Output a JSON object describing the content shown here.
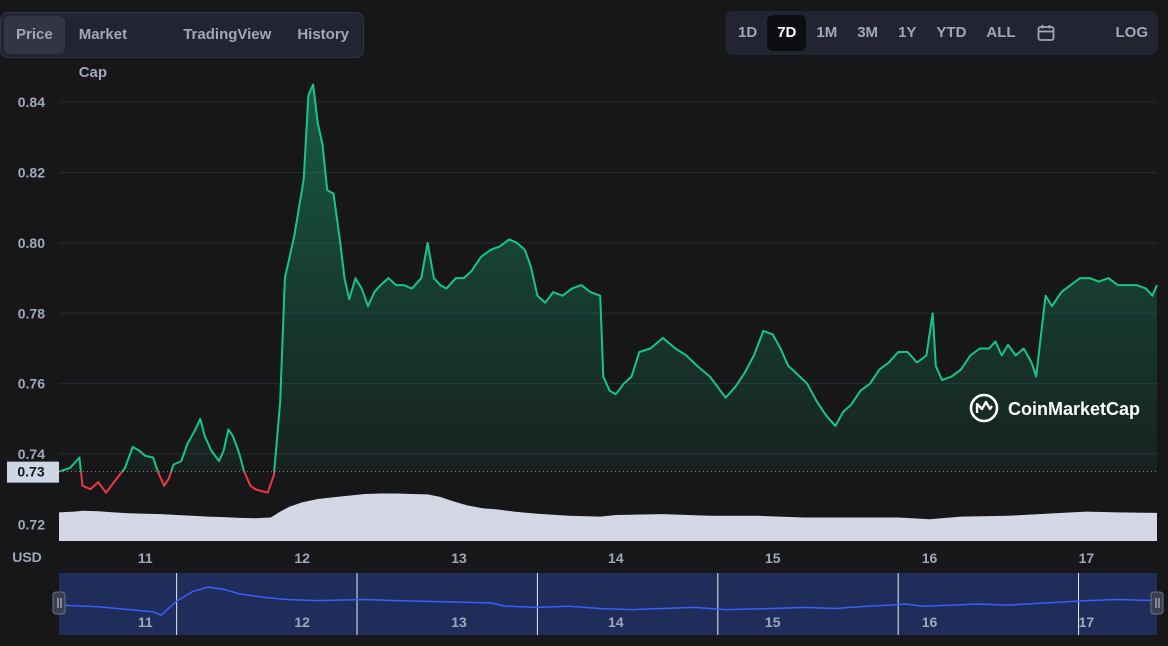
{
  "tabs": [
    "Price",
    "Market Cap",
    "TradingView",
    "History"
  ],
  "active_tab": "Price",
  "ranges": [
    "1D",
    "7D",
    "1M",
    "3M",
    "1Y",
    "YTD",
    "ALL"
  ],
  "active_range": "7D",
  "calendar_icon": "calendar-icon",
  "log_label": "LOG",
  "currency_label": "USD",
  "watermark": "CoinMarketCap",
  "colors": {
    "up": "#16c784",
    "down": "#ea3943",
    "volume": "#d3d8e4",
    "navigator_line": "#3861fb",
    "background": "#17171a"
  },
  "chart_data": {
    "type": "line",
    "yticks": [
      "0.84",
      "0.82",
      "0.80",
      "0.78",
      "0.76",
      "0.74",
      "0.72"
    ],
    "ylim": [
      0.715,
      0.848
    ],
    "xticks": [
      "11",
      "12",
      "13",
      "14",
      "15",
      "16",
      "17"
    ],
    "reference_price": 0.735,
    "reference_label": "0.73",
    "xrange_days": [
      10.45,
      17.45
    ],
    "price_series": [
      [
        10.45,
        0.735
      ],
      [
        10.52,
        0.736
      ],
      [
        10.58,
        0.739
      ],
      [
        10.6,
        0.731
      ],
      [
        10.65,
        0.73
      ],
      [
        10.7,
        0.732
      ],
      [
        10.75,
        0.729
      ],
      [
        10.8,
        0.732
      ],
      [
        10.87,
        0.736
      ],
      [
        10.92,
        0.742
      ],
      [
        10.96,
        0.741
      ],
      [
        11.0,
        0.7395
      ],
      [
        11.05,
        0.739
      ],
      [
        11.08,
        0.735
      ],
      [
        11.12,
        0.731
      ],
      [
        11.15,
        0.733
      ],
      [
        11.18,
        0.737
      ],
      [
        11.23,
        0.738
      ],
      [
        11.27,
        0.743
      ],
      [
        11.32,
        0.747
      ],
      [
        11.35,
        0.75
      ],
      [
        11.38,
        0.745
      ],
      [
        11.42,
        0.741
      ],
      [
        11.47,
        0.738
      ],
      [
        11.5,
        0.741
      ],
      [
        11.53,
        0.747
      ],
      [
        11.56,
        0.745
      ],
      [
        11.6,
        0.74
      ],
      [
        11.63,
        0.735
      ],
      [
        11.67,
        0.731
      ],
      [
        11.7,
        0.73
      ],
      [
        11.74,
        0.7295
      ],
      [
        11.78,
        0.729
      ],
      [
        11.82,
        0.734
      ],
      [
        11.86,
        0.755
      ],
      [
        11.89,
        0.79
      ],
      [
        11.92,
        0.796
      ],
      [
        11.95,
        0.802
      ],
      [
        11.98,
        0.81
      ],
      [
        12.01,
        0.818
      ],
      [
        12.04,
        0.842
      ],
      [
        12.07,
        0.845
      ],
      [
        12.1,
        0.834
      ],
      [
        12.13,
        0.828
      ],
      [
        12.16,
        0.815
      ],
      [
        12.2,
        0.814
      ],
      [
        12.24,
        0.801
      ],
      [
        12.27,
        0.79
      ],
      [
        12.3,
        0.784
      ],
      [
        12.34,
        0.79
      ],
      [
        12.38,
        0.787
      ],
      [
        12.42,
        0.782
      ],
      [
        12.46,
        0.786
      ],
      [
        12.5,
        0.788
      ],
      [
        12.55,
        0.79
      ],
      [
        12.6,
        0.788
      ],
      [
        12.65,
        0.788
      ],
      [
        12.7,
        0.787
      ],
      [
        12.76,
        0.79
      ],
      [
        12.8,
        0.8
      ],
      [
        12.84,
        0.79
      ],
      [
        12.88,
        0.788
      ],
      [
        12.92,
        0.787
      ],
      [
        12.98,
        0.79
      ],
      [
        13.03,
        0.79
      ],
      [
        13.08,
        0.792
      ],
      [
        13.14,
        0.796
      ],
      [
        13.2,
        0.798
      ],
      [
        13.26,
        0.799
      ],
      [
        13.32,
        0.801
      ],
      [
        13.37,
        0.8
      ],
      [
        13.42,
        0.798
      ],
      [
        13.46,
        0.793
      ],
      [
        13.5,
        0.785
      ],
      [
        13.55,
        0.783
      ],
      [
        13.6,
        0.786
      ],
      [
        13.66,
        0.785
      ],
      [
        13.72,
        0.787
      ],
      [
        13.78,
        0.788
      ],
      [
        13.84,
        0.786
      ],
      [
        13.9,
        0.785
      ],
      [
        13.92,
        0.762
      ],
      [
        13.96,
        0.758
      ],
      [
        14.0,
        0.757
      ],
      [
        14.05,
        0.76
      ],
      [
        14.1,
        0.762
      ],
      [
        14.15,
        0.769
      ],
      [
        14.22,
        0.77
      ],
      [
        14.3,
        0.773
      ],
      [
        14.38,
        0.77
      ],
      [
        14.45,
        0.768
      ],
      [
        14.52,
        0.765
      ],
      [
        14.6,
        0.762
      ],
      [
        14.65,
        0.759
      ],
      [
        14.7,
        0.756
      ],
      [
        14.76,
        0.759
      ],
      [
        14.82,
        0.763
      ],
      [
        14.88,
        0.768
      ],
      [
        14.94,
        0.775
      ],
      [
        15.0,
        0.774
      ],
      [
        15.05,
        0.77
      ],
      [
        15.1,
        0.765
      ],
      [
        15.15,
        0.763
      ],
      [
        15.22,
        0.76
      ],
      [
        15.28,
        0.755
      ],
      [
        15.34,
        0.751
      ],
      [
        15.4,
        0.748
      ],
      [
        15.45,
        0.752
      ],
      [
        15.5,
        0.754
      ],
      [
        15.56,
        0.758
      ],
      [
        15.62,
        0.76
      ],
      [
        15.68,
        0.764
      ],
      [
        15.74,
        0.766
      ],
      [
        15.8,
        0.769
      ],
      [
        15.86,
        0.769
      ],
      [
        15.92,
        0.766
      ],
      [
        15.98,
        0.768
      ],
      [
        16.02,
        0.78
      ],
      [
        16.04,
        0.765
      ],
      [
        16.08,
        0.761
      ],
      [
        16.14,
        0.762
      ],
      [
        16.2,
        0.764
      ],
      [
        16.26,
        0.768
      ],
      [
        16.32,
        0.77
      ],
      [
        16.38,
        0.77
      ],
      [
        16.42,
        0.772
      ],
      [
        16.46,
        0.768
      ],
      [
        16.5,
        0.771
      ],
      [
        16.55,
        0.768
      ],
      [
        16.6,
        0.77
      ],
      [
        16.65,
        0.766
      ],
      [
        16.68,
        0.762
      ],
      [
        16.7,
        0.77
      ],
      [
        16.74,
        0.785
      ],
      [
        16.78,
        0.782
      ],
      [
        16.84,
        0.786
      ],
      [
        16.9,
        0.788
      ],
      [
        16.96,
        0.79
      ],
      [
        17.02,
        0.79
      ],
      [
        17.08,
        0.789
      ],
      [
        17.14,
        0.79
      ],
      [
        17.2,
        0.788
      ],
      [
        17.26,
        0.788
      ],
      [
        17.32,
        0.788
      ],
      [
        17.38,
        0.787
      ],
      [
        17.42,
        0.785
      ],
      [
        17.45,
        0.788
      ]
    ],
    "volume_series": [
      [
        10.45,
        0.68
      ],
      [
        10.55,
        0.7
      ],
      [
        10.6,
        0.72
      ],
      [
        10.7,
        0.71
      ],
      [
        10.8,
        0.68
      ],
      [
        10.9,
        0.66
      ],
      [
        11.0,
        0.65
      ],
      [
        11.1,
        0.64
      ],
      [
        11.2,
        0.62
      ],
      [
        11.3,
        0.6
      ],
      [
        11.4,
        0.58
      ],
      [
        11.5,
        0.57
      ],
      [
        11.6,
        0.55
      ],
      [
        11.7,
        0.54
      ],
      [
        11.8,
        0.56
      ],
      [
        11.86,
        0.7
      ],
      [
        11.92,
        0.82
      ],
      [
        12.0,
        0.92
      ],
      [
        12.1,
        1.0
      ],
      [
        12.2,
        1.04
      ],
      [
        12.3,
        1.08
      ],
      [
        12.4,
        1.12
      ],
      [
        12.5,
        1.13
      ],
      [
        12.6,
        1.13
      ],
      [
        12.7,
        1.12
      ],
      [
        12.8,
        1.11
      ],
      [
        12.88,
        1.05
      ],
      [
        12.96,
        0.95
      ],
      [
        13.05,
        0.85
      ],
      [
        13.15,
        0.78
      ],
      [
        13.25,
        0.75
      ],
      [
        13.35,
        0.7
      ],
      [
        13.5,
        0.65
      ],
      [
        13.7,
        0.6
      ],
      [
        13.9,
        0.58
      ],
      [
        14.0,
        0.62
      ],
      [
        14.3,
        0.64
      ],
      [
        14.6,
        0.6
      ],
      [
        14.9,
        0.6
      ],
      [
        15.2,
        0.56
      ],
      [
        15.5,
        0.56
      ],
      [
        15.8,
        0.56
      ],
      [
        16.0,
        0.52
      ],
      [
        16.2,
        0.58
      ],
      [
        16.5,
        0.6
      ],
      [
        16.8,
        0.66
      ],
      [
        17.0,
        0.7
      ],
      [
        17.2,
        0.68
      ],
      [
        17.45,
        0.67
      ]
    ],
    "navigator_series": [
      [
        10.45,
        0.48
      ],
      [
        10.7,
        0.45
      ],
      [
        10.9,
        0.4
      ],
      [
        11.05,
        0.36
      ],
      [
        11.1,
        0.3
      ],
      [
        11.2,
        0.55
      ],
      [
        11.3,
        0.72
      ],
      [
        11.4,
        0.8
      ],
      [
        11.5,
        0.76
      ],
      [
        11.6,
        0.68
      ],
      [
        11.75,
        0.62
      ],
      [
        11.9,
        0.58
      ],
      [
        12.1,
        0.56
      ],
      [
        12.4,
        0.58
      ],
      [
        12.6,
        0.56
      ],
      [
        12.9,
        0.54
      ],
      [
        13.2,
        0.52
      ],
      [
        13.3,
        0.46
      ],
      [
        13.5,
        0.44
      ],
      [
        13.7,
        0.46
      ],
      [
        13.9,
        0.42
      ],
      [
        14.1,
        0.4
      ],
      [
        14.3,
        0.42
      ],
      [
        14.5,
        0.44
      ],
      [
        14.7,
        0.4
      ],
      [
        15.0,
        0.42
      ],
      [
        15.2,
        0.44
      ],
      [
        15.4,
        0.42
      ],
      [
        15.6,
        0.46
      ],
      [
        15.75,
        0.48
      ],
      [
        15.85,
        0.5
      ],
      [
        15.95,
        0.46
      ],
      [
        16.15,
        0.48
      ],
      [
        16.3,
        0.5
      ],
      [
        16.5,
        0.48
      ],
      [
        16.75,
        0.52
      ],
      [
        17.0,
        0.56
      ],
      [
        17.2,
        0.58
      ],
      [
        17.45,
        0.56
      ]
    ]
  }
}
